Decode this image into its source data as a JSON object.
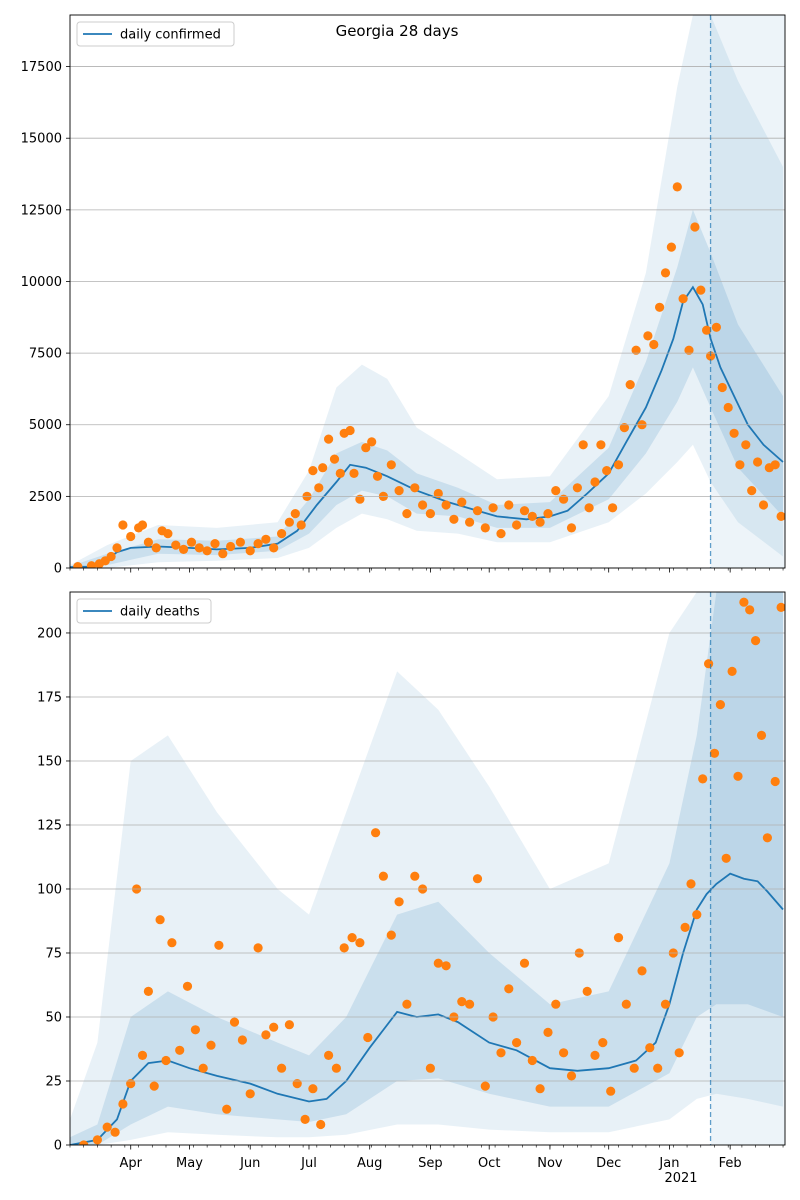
{
  "chart_data": [
    {
      "type": "line",
      "title": "Georgia 28 days",
      "legend": {
        "label": "daily confirmed",
        "placement": "top-left"
      },
      "ylim": [
        0,
        19300
      ],
      "yticks": [
        0,
        2500,
        5000,
        7500,
        10000,
        12500,
        15000,
        17500
      ],
      "grid": "horizontal",
      "colors": {
        "line": "#1f77b4",
        "points": "#ff7f0e",
        "band": "#1f77b4",
        "marker_line": "#1f77b4"
      },
      "forecast_start": "2021-01-22",
      "series": [
        {
          "name": "daily confirmed",
          "kind": "line",
          "x": [
            "2020-03-01",
            "2020-03-10",
            "2020-03-15",
            "2020-03-20",
            "2020-03-25",
            "2020-04-01",
            "2020-04-15",
            "2020-05-01",
            "2020-05-15",
            "2020-06-01",
            "2020-06-15",
            "2020-06-25",
            "2020-07-05",
            "2020-07-15",
            "2020-07-22",
            "2020-07-30",
            "2020-08-10",
            "2020-08-25",
            "2020-09-10",
            "2020-09-25",
            "2020-10-05",
            "2020-10-20",
            "2020-11-01",
            "2020-11-10",
            "2020-11-20",
            "2020-12-01",
            "2020-12-10",
            "2020-12-20",
            "2020-12-28",
            "2021-01-03",
            "2021-01-08",
            "2021-01-13",
            "2021-01-18",
            "2021-01-22",
            "2021-01-27",
            "2021-02-03",
            "2021-02-10",
            "2021-02-18",
            "2021-02-28"
          ],
          "y": [
            30,
            50,
            150,
            300,
            550,
            700,
            750,
            700,
            650,
            700,
            850,
            1300,
            2200,
            3000,
            3600,
            3500,
            3200,
            2700,
            2300,
            2000,
            1800,
            1700,
            1800,
            2000,
            2600,
            3300,
            4400,
            5600,
            6900,
            8000,
            9300,
            9800,
            9200,
            8000,
            7000,
            6000,
            5000,
            4300,
            3700
          ]
        }
      ],
      "band_inner": {
        "x": [
          "2020-03-01",
          "2020-03-20",
          "2020-04-15",
          "2020-05-15",
          "2020-06-15",
          "2020-07-01",
          "2020-07-15",
          "2020-07-28",
          "2020-08-10",
          "2020-08-25",
          "2020-09-15",
          "2020-10-05",
          "2020-11-01",
          "2020-12-01",
          "2020-12-20",
          "2021-01-05",
          "2021-01-13",
          "2021-01-22",
          "2021-02-05",
          "2021-02-28"
        ],
        "low": [
          0,
          100,
          500,
          450,
          600,
          1200,
          2200,
          2700,
          2500,
          1900,
          1800,
          1400,
          1400,
          2400,
          4000,
          5800,
          7000,
          5600,
          3500,
          1800
        ],
        "high": [
          60,
          500,
          1000,
          950,
          1100,
          2400,
          4000,
          4400,
          4100,
          3300,
          2800,
          2200,
          2300,
          4200,
          7200,
          10500,
          12500,
          11000,
          8500,
          6000
        ]
      },
      "band_outer": {
        "x": [
          "2020-03-01",
          "2020-03-20",
          "2020-04-15",
          "2020-05-15",
          "2020-06-15",
          "2020-07-01",
          "2020-07-15",
          "2020-07-28",
          "2020-08-10",
          "2020-08-25",
          "2020-09-15",
          "2020-10-05",
          "2020-11-01",
          "2020-12-01",
          "2020-12-20",
          "2021-01-05",
          "2021-01-13",
          "2021-01-22",
          "2021-02-05",
          "2021-02-28"
        ],
        "low": [
          0,
          0,
          200,
          250,
          350,
          700,
          1400,
          1900,
          1700,
          1300,
          1200,
          900,
          900,
          1600,
          2600,
          3700,
          4300,
          3000,
          1600,
          400
        ],
        "high": [
          100,
          800,
          1500,
          1400,
          1600,
          3400,
          6300,
          7100,
          6600,
          4900,
          4000,
          3100,
          3200,
          6000,
          10300,
          16800,
          19300,
          19300,
          17000,
          14000
        ]
      },
      "points": {
        "x": [
          "2020-03-05",
          "2020-03-12",
          "2020-03-16",
          "2020-03-19",
          "2020-03-22",
          "2020-03-25",
          "2020-03-28",
          "2020-04-01",
          "2020-04-05",
          "2020-04-07",
          "2020-04-10",
          "2020-04-14",
          "2020-04-17",
          "2020-04-20",
          "2020-04-24",
          "2020-04-28",
          "2020-05-02",
          "2020-05-06",
          "2020-05-10",
          "2020-05-14",
          "2020-05-18",
          "2020-05-22",
          "2020-05-27",
          "2020-06-01",
          "2020-06-05",
          "2020-06-09",
          "2020-06-13",
          "2020-06-17",
          "2020-06-21",
          "2020-06-24",
          "2020-06-27",
          "2020-06-30",
          "2020-07-03",
          "2020-07-06",
          "2020-07-08",
          "2020-07-11",
          "2020-07-14",
          "2020-07-17",
          "2020-07-19",
          "2020-07-22",
          "2020-07-24",
          "2020-07-27",
          "2020-07-30",
          "2020-08-02",
          "2020-08-05",
          "2020-08-08",
          "2020-08-12",
          "2020-08-16",
          "2020-08-20",
          "2020-08-24",
          "2020-08-28",
          "2020-09-01",
          "2020-09-05",
          "2020-09-09",
          "2020-09-13",
          "2020-09-17",
          "2020-09-21",
          "2020-09-25",
          "2020-09-29",
          "2020-10-03",
          "2020-10-07",
          "2020-10-11",
          "2020-10-15",
          "2020-10-19",
          "2020-10-23",
          "2020-10-27",
          "2020-10-31",
          "2020-11-04",
          "2020-11-08",
          "2020-11-12",
          "2020-11-15",
          "2020-11-18",
          "2020-11-21",
          "2020-11-24",
          "2020-11-27",
          "2020-11-30",
          "2020-12-03",
          "2020-12-06",
          "2020-12-09",
          "2020-12-12",
          "2020-12-15",
          "2020-12-18",
          "2020-12-21",
          "2020-12-24",
          "2020-12-27",
          "2020-12-30",
          "2021-01-02",
          "2021-01-05",
          "2021-01-08",
          "2021-01-11",
          "2021-01-14",
          "2021-01-17",
          "2021-01-20",
          "2021-01-22",
          "2021-01-25",
          "2021-01-28",
          "2021-01-31",
          "2021-02-03",
          "2021-02-06",
          "2021-02-09",
          "2021-02-12",
          "2021-02-15",
          "2021-02-18",
          "2021-02-21",
          "2021-02-24",
          "2021-02-27"
        ],
        "y": [
          50,
          80,
          150,
          250,
          400,
          700,
          1500,
          1100,
          1400,
          1500,
          900,
          700,
          1300,
          1200,
          800,
          650,
          900,
          700,
          600,
          850,
          500,
          750,
          900,
          600,
          850,
          1000,
          700,
          1200,
          1600,
          1900,
          1500,
          2500,
          3400,
          2800,
          3500,
          4500,
          3800,
          3300,
          4700,
          4800,
          3300,
          2400,
          4200,
          4400,
          3200,
          2500,
          3600,
          2700,
          1900,
          2800,
          2200,
          1900,
          2600,
          2200,
          1700,
          2300,
          1600,
          2000,
          1400,
          2100,
          1200,
          2200,
          1500,
          2000,
          1800,
          1600,
          1900,
          2700,
          2400,
          1400,
          2800,
          4300,
          2100,
          3000,
          4300,
          3400,
          2100,
          3600,
          4900,
          6400,
          7600,
          5000,
          8100,
          7800,
          9100,
          10300,
          11200,
          13300,
          9400,
          7600,
          11900,
          9700,
          8300,
          7400,
          8400,
          6300,
          5600,
          4700,
          3600,
          4300,
          2700,
          3700,
          2200,
          3500,
          3600,
          1800
        ]
      }
    },
    {
      "type": "line",
      "title": "",
      "legend": {
        "label": "daily deaths",
        "placement": "top-left"
      },
      "ylim": [
        0,
        216
      ],
      "yticks": [
        0,
        25,
        50,
        75,
        100,
        125,
        150,
        175,
        200
      ],
      "grid": "horizontal",
      "colors": {
        "line": "#1f77b4",
        "points": "#ff7f0e",
        "band": "#1f77b4",
        "marker_line": "#1f77b4"
      },
      "forecast_start": "2021-01-22",
      "xticks": [
        "Apr",
        "May",
        "Jun",
        "Jul",
        "Aug",
        "Sep",
        "Oct",
        "Nov",
        "Dec",
        "Jan",
        "Feb"
      ],
      "xtick_dates": [
        "2020-04-01",
        "2020-05-01",
        "2020-06-01",
        "2020-07-01",
        "2020-08-01",
        "2020-09-01",
        "2020-10-01",
        "2020-11-01",
        "2020-12-01",
        "2021-01-01",
        "2021-02-01"
      ],
      "xlabel_year": "2021",
      "xrange": [
        "2020-03-01",
        "2021-03-01"
      ],
      "series": [
        {
          "name": "daily deaths",
          "kind": "line",
          "x": [
            "2020-03-01",
            "2020-03-15",
            "2020-03-25",
            "2020-04-01",
            "2020-04-10",
            "2020-04-20",
            "2020-05-01",
            "2020-05-15",
            "2020-06-01",
            "2020-06-15",
            "2020-07-01",
            "2020-07-10",
            "2020-07-20",
            "2020-08-01",
            "2020-08-15",
            "2020-08-25",
            "2020-09-05",
            "2020-09-15",
            "2020-10-01",
            "2020-10-15",
            "2020-11-01",
            "2020-11-15",
            "2020-12-01",
            "2020-12-15",
            "2020-12-25",
            "2021-01-01",
            "2021-01-08",
            "2021-01-15",
            "2021-01-20",
            "2021-01-25",
            "2021-02-01",
            "2021-02-08",
            "2021-02-15",
            "2021-02-20",
            "2021-02-28"
          ],
          "y": [
            0,
            2,
            10,
            25,
            32,
            33,
            30,
            27,
            24,
            20,
            17,
            18,
            25,
            38,
            52,
            50,
            51,
            48,
            40,
            37,
            30,
            29,
            30,
            33,
            40,
            55,
            75,
            92,
            98,
            102,
            106,
            104,
            103,
            99,
            92
          ]
        }
      ],
      "band_inner": {
        "x": [
          "2020-03-01",
          "2020-03-15",
          "2020-04-01",
          "2020-04-20",
          "2020-05-15",
          "2020-06-15",
          "2020-07-01",
          "2020-07-20",
          "2020-08-15",
          "2020-09-05",
          "2020-10-01",
          "2020-11-01",
          "2020-12-01",
          "2021-01-01",
          "2021-01-15",
          "2021-01-25",
          "2021-02-10",
          "2021-02-28"
        ],
        "low": [
          0,
          0,
          8,
          15,
          12,
          10,
          9,
          12,
          25,
          26,
          20,
          15,
          15,
          28,
          50,
          55,
          55,
          50
        ],
        "high": [
          3,
          8,
          50,
          60,
          50,
          40,
          35,
          50,
          90,
          95,
          75,
          55,
          60,
          110,
          160,
          216,
          216,
          216
        ]
      },
      "band_outer": {
        "x": [
          "2020-03-01",
          "2020-03-15",
          "2020-04-01",
          "2020-04-20",
          "2020-05-15",
          "2020-06-15",
          "2020-07-01",
          "2020-07-20",
          "2020-08-15",
          "2020-09-05",
          "2020-10-01",
          "2020-11-01",
          "2020-12-01",
          "2021-01-01",
          "2021-01-15",
          "2021-01-25",
          "2021-02-10",
          "2021-02-28"
        ],
        "low": [
          0,
          0,
          2,
          5,
          4,
          3,
          3,
          4,
          8,
          8,
          6,
          5,
          5,
          10,
          18,
          20,
          18,
          15
        ],
        "high": [
          10,
          40,
          150,
          160,
          130,
          100,
          90,
          130,
          185,
          170,
          140,
          100,
          110,
          200,
          216,
          216,
          216,
          216
        ]
      },
      "points": {
        "x": [
          "2020-03-08",
          "2020-03-15",
          "2020-03-20",
          "2020-03-24",
          "2020-03-28",
          "2020-04-01",
          "2020-04-04",
          "2020-04-07",
          "2020-04-10",
          "2020-04-13",
          "2020-04-16",
          "2020-04-19",
          "2020-04-22",
          "2020-04-26",
          "2020-04-30",
          "2020-05-04",
          "2020-05-08",
          "2020-05-12",
          "2020-05-16",
          "2020-05-20",
          "2020-05-24",
          "2020-05-28",
          "2020-06-01",
          "2020-06-05",
          "2020-06-09",
          "2020-06-13",
          "2020-06-17",
          "2020-06-21",
          "2020-06-25",
          "2020-06-29",
          "2020-07-03",
          "2020-07-07",
          "2020-07-11",
          "2020-07-15",
          "2020-07-19",
          "2020-07-23",
          "2020-07-27",
          "2020-07-31",
          "2020-08-04",
          "2020-08-08",
          "2020-08-12",
          "2020-08-16",
          "2020-08-20",
          "2020-08-24",
          "2020-08-28",
          "2020-09-01",
          "2020-09-05",
          "2020-09-09",
          "2020-09-13",
          "2020-09-17",
          "2020-09-21",
          "2020-09-25",
          "2020-09-29",
          "2020-10-03",
          "2020-10-07",
          "2020-10-11",
          "2020-10-15",
          "2020-10-19",
          "2020-10-23",
          "2020-10-27",
          "2020-10-31",
          "2020-11-04",
          "2020-11-08",
          "2020-11-12",
          "2020-11-16",
          "2020-11-20",
          "2020-11-24",
          "2020-11-28",
          "2020-12-02",
          "2020-12-06",
          "2020-12-10",
          "2020-12-14",
          "2020-12-18",
          "2020-12-22",
          "2020-12-26",
          "2020-12-30",
          "2021-01-03",
          "2021-01-06",
          "2021-01-09",
          "2021-01-12",
          "2021-01-15",
          "2021-01-18",
          "2021-01-21",
          "2021-01-24",
          "2021-01-27",
          "2021-01-30",
          "2021-02-02",
          "2021-02-05",
          "2021-02-08",
          "2021-02-11",
          "2021-02-14",
          "2021-02-17",
          "2021-02-20",
          "2021-02-24",
          "2021-02-27"
        ],
        "y": [
          0,
          2,
          7,
          5,
          16,
          24,
          100,
          35,
          60,
          23,
          88,
          33,
          79,
          37,
          62,
          45,
          30,
          39,
          78,
          14,
          48,
          41,
          20,
          77,
          43,
          46,
          30,
          47,
          24,
          10,
          22,
          8,
          35,
          30,
          77,
          81,
          79,
          42,
          122,
          105,
          82,
          95,
          55,
          105,
          100,
          30,
          71,
          70,
          50,
          56,
          55,
          104,
          23,
          50,
          36,
          61,
          40,
          71,
          33,
          22,
          44,
          55,
          36,
          27,
          75,
          60,
          35,
          40,
          21,
          81,
          55,
          30,
          68,
          38,
          30,
          55,
          75,
          36,
          85,
          102,
          90,
          143,
          188,
          153,
          172,
          112,
          185,
          144,
          212,
          209,
          197,
          160,
          120,
          142,
          210
        ]
      }
    }
  ]
}
